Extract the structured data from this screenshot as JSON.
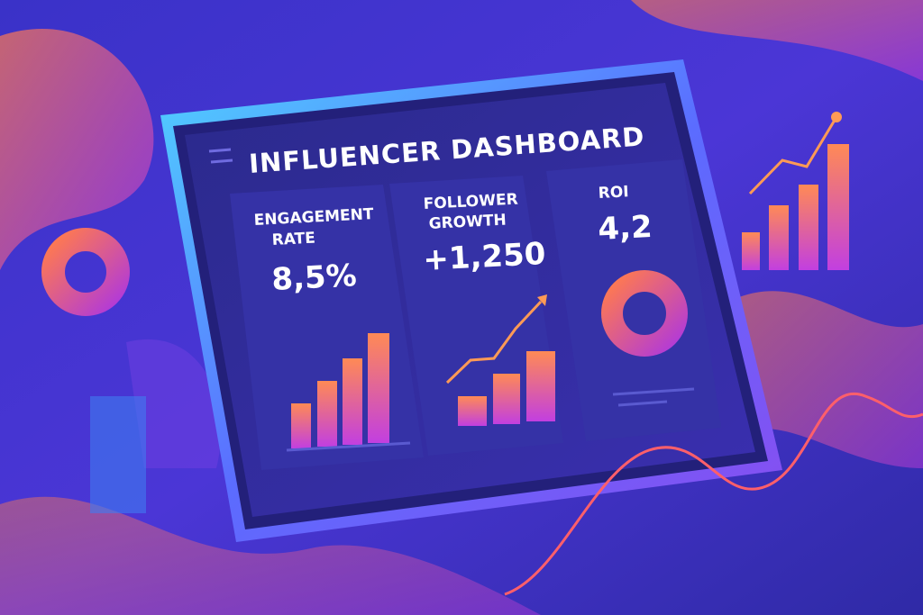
{
  "header": {
    "title": "INFLUENCER DASHBOARD"
  },
  "cards": [
    {
      "label": [
        "ENGAGEMENT",
        "RATE"
      ],
      "value": "8,5%"
    },
    {
      "label": [
        "FOLLOWER",
        "GROWTH"
      ],
      "value": "+1,250"
    },
    {
      "label": [
        "ROI"
      ],
      "value": "4,2"
    }
  ]
}
